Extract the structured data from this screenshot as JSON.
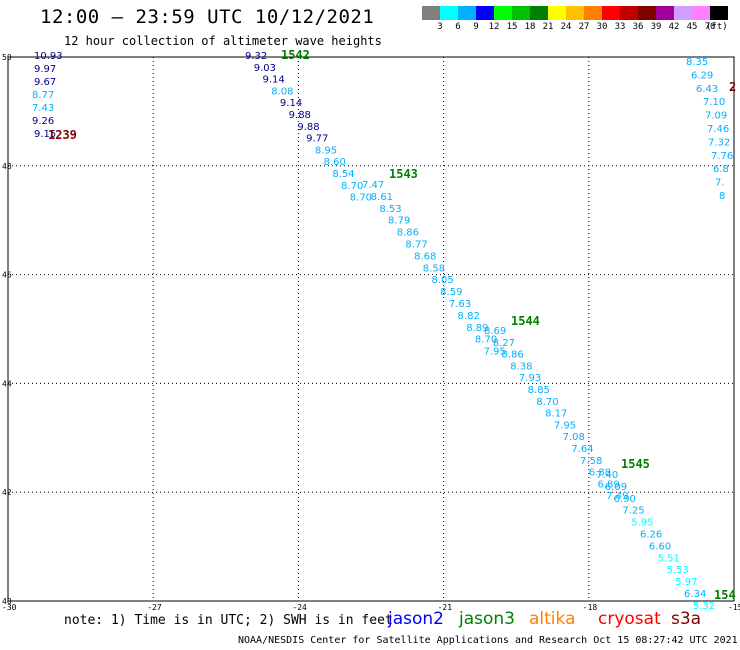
{
  "header": {
    "title": "12:00 – 23:59 UTC 10/12/2021",
    "subtitle": "12 hour collection of altimeter wave heights"
  },
  "colorbar": {
    "unit_label": "(ft)",
    "bins": [
      {
        "label": "3",
        "color": "#808080"
      },
      {
        "label": "6",
        "color": "#00ffff"
      },
      {
        "label": "9",
        "color": "#00b0ff"
      },
      {
        "label": "12",
        "color": "#0000ff"
      },
      {
        "label": "15",
        "color": "#00ff00"
      },
      {
        "label": "18",
        "color": "#00c000"
      },
      {
        "label": "21",
        "color": "#008000"
      },
      {
        "label": "24",
        "color": "#ffff00"
      },
      {
        "label": "27",
        "color": "#ffc000"
      },
      {
        "label": "30",
        "color": "#ff8000"
      },
      {
        "label": "33",
        "color": "#ff0000"
      },
      {
        "label": "36",
        "color": "#c00000"
      },
      {
        "label": "39",
        "color": "#800000"
      },
      {
        "label": "42",
        "color": "#a000a0"
      },
      {
        "label": "45",
        "color": "#d0a0ff"
      },
      {
        "label": "70",
        "color": "#ff80ff"
      },
      {
        "label": "",
        "color": "#000000"
      }
    ]
  },
  "axes": {
    "lat_labels": [
      "50",
      "48",
      "46",
      "44",
      "42",
      "40"
    ],
    "lon_labels": [
      "-30",
      "-27",
      "-24",
      "-21",
      "-18",
      "-15"
    ],
    "lat_range": [
      40,
      50
    ],
    "lon_range": [
      -30,
      -15
    ]
  },
  "tracks": [
    {
      "label": "1239",
      "label_color": "#800000",
      "points": [
        {
          "v": "10.93",
          "color": "#00008b"
        },
        {
          "v": "9.97",
          "color": "#00008b"
        },
        {
          "v": "9.67",
          "color": "#00008b"
        },
        {
          "v": "8.77",
          "color": "#00b0ff"
        },
        {
          "v": "7.43",
          "color": "#00b0ff"
        },
        {
          "v": "9.26",
          "color": "#00008b"
        },
        {
          "v": "9.15",
          "color": "#00008b"
        }
      ]
    },
    {
      "label": "1542",
      "label_color": "#008000",
      "points": [
        {
          "v": "9.32",
          "color": "#00008b"
        },
        {
          "v": "9.03",
          "color": "#00008b"
        },
        {
          "v": "9.14",
          "color": "#00008b"
        },
        {
          "v": "8.08",
          "color": "#00b0ff"
        },
        {
          "v": "9.14",
          "color": "#00008b"
        },
        {
          "v": "9.88",
          "color": "#00008b"
        },
        {
          "v": "9.88",
          "color": "#00008b"
        },
        {
          "v": "9.77",
          "color": "#00008b"
        },
        {
          "v": "8.95",
          "color": "#00b0ff"
        },
        {
          "v": "8.60",
          "color": "#00b0ff"
        },
        {
          "v": "8.54",
          "color": "#00b0ff"
        },
        {
          "v": "8.70",
          "color": "#00b0ff"
        },
        {
          "v": "8.70",
          "color": "#00b0ff"
        }
      ]
    },
    {
      "label": "1543",
      "label_color": "#008000",
      "points": [
        {
          "v": "7.47",
          "color": "#00b0ff"
        },
        {
          "v": "8.61",
          "color": "#00b0ff"
        },
        {
          "v": "8.53",
          "color": "#00b0ff"
        },
        {
          "v": "8.79",
          "color": "#00b0ff"
        },
        {
          "v": "8.86",
          "color": "#00b0ff"
        },
        {
          "v": "8.77",
          "color": "#00b0ff"
        },
        {
          "v": "8.68",
          "color": "#00b0ff"
        },
        {
          "v": "8.58",
          "color": "#00b0ff"
        },
        {
          "v": "8.05",
          "color": "#00b0ff"
        },
        {
          "v": "8.59",
          "color": "#00b0ff"
        },
        {
          "v": "7.63",
          "color": "#00b0ff"
        },
        {
          "v": "8.82",
          "color": "#00b0ff"
        },
        {
          "v": "8.89",
          "color": "#00b0ff"
        },
        {
          "v": "8.70",
          "color": "#00b0ff"
        },
        {
          "v": "7.95",
          "color": "#00b0ff"
        }
      ]
    },
    {
      "label": "1544",
      "label_color": "#008000",
      "points": [
        {
          "v": "8.69",
          "color": "#00b0ff"
        },
        {
          "v": "8.27",
          "color": "#00b0ff"
        },
        {
          "v": "8.86",
          "color": "#00b0ff"
        },
        {
          "v": "8.38",
          "color": "#00b0ff"
        },
        {
          "v": "7.93",
          "color": "#00b0ff"
        },
        {
          "v": "8.85",
          "color": "#00b0ff"
        },
        {
          "v": "8.70",
          "color": "#00b0ff"
        },
        {
          "v": "8.17",
          "color": "#00b0ff"
        },
        {
          "v": "7.95",
          "color": "#00b0ff"
        },
        {
          "v": "7.08",
          "color": "#00b0ff"
        },
        {
          "v": "7.64",
          "color": "#00b0ff"
        },
        {
          "v": "7.58",
          "color": "#00b0ff"
        },
        {
          "v": "6.88",
          "color": "#00b0ff"
        },
        {
          "v": "6.89",
          "color": "#00b0ff"
        },
        {
          "v": "7.49",
          "color": "#00b0ff"
        }
      ]
    },
    {
      "label": "1545",
      "label_color": "#008000",
      "points": [
        {
          "v": "7.40",
          "color": "#00b0ff"
        },
        {
          "v": "6.09",
          "color": "#00b0ff"
        },
        {
          "v": "6.90",
          "color": "#00b0ff"
        },
        {
          "v": "7.25",
          "color": "#00b0ff"
        },
        {
          "v": "5.95",
          "color": "#00ffff"
        },
        {
          "v": "6.26",
          "color": "#00b0ff"
        },
        {
          "v": "6.60",
          "color": "#00b0ff"
        },
        {
          "v": "5.51",
          "color": "#00ffff"
        },
        {
          "v": "5.53",
          "color": "#00ffff"
        },
        {
          "v": "5.97",
          "color": "#00ffff"
        },
        {
          "v": "6.34",
          "color": "#00b0ff"
        },
        {
          "v": "5.32",
          "color": "#00ffff"
        },
        {
          "v": "6.17",
          "color": "#00b0ff"
        },
        {
          "v": "5.56",
          "color": "#00ffff"
        }
      ]
    },
    {
      "label": "154",
      "label_color": "#008000",
      "points": []
    },
    {
      "label": "2",
      "label_color": "#800000",
      "points": [
        {
          "v": "8.35",
          "color": "#00b0ff"
        },
        {
          "v": "6.29",
          "color": "#00b0ff"
        },
        {
          "v": "6.43",
          "color": "#00b0ff"
        },
        {
          "v": "7.10",
          "color": "#00b0ff"
        },
        {
          "v": "7.09",
          "color": "#00b0ff"
        },
        {
          "v": "7.46",
          "color": "#00b0ff"
        },
        {
          "v": "7.32",
          "color": "#00b0ff"
        },
        {
          "v": "7.76",
          "color": "#00b0ff"
        },
        {
          "v": "6.8",
          "color": "#00b0ff"
        },
        {
          "v": "7.",
          "color": "#00b0ff"
        },
        {
          "v": "8",
          "color": "#00b0ff"
        }
      ]
    }
  ],
  "footer": {
    "note": "note: 1) Time is in UTC; 2) SWH is in feet",
    "legend": [
      {
        "label": "jason2",
        "color": "#0000ff"
      },
      {
        "label": "jason3",
        "color": "#008000"
      },
      {
        "label": "altika",
        "color": "#ff8000"
      },
      {
        "label": "cryosat",
        "color": "#ff0000"
      },
      {
        "label": "s3a",
        "color": "#800000"
      }
    ],
    "credit": "NOAA/NESDIS Center for Satellite Applications and Research    Oct 15 08:27:42 UTC 2021"
  }
}
